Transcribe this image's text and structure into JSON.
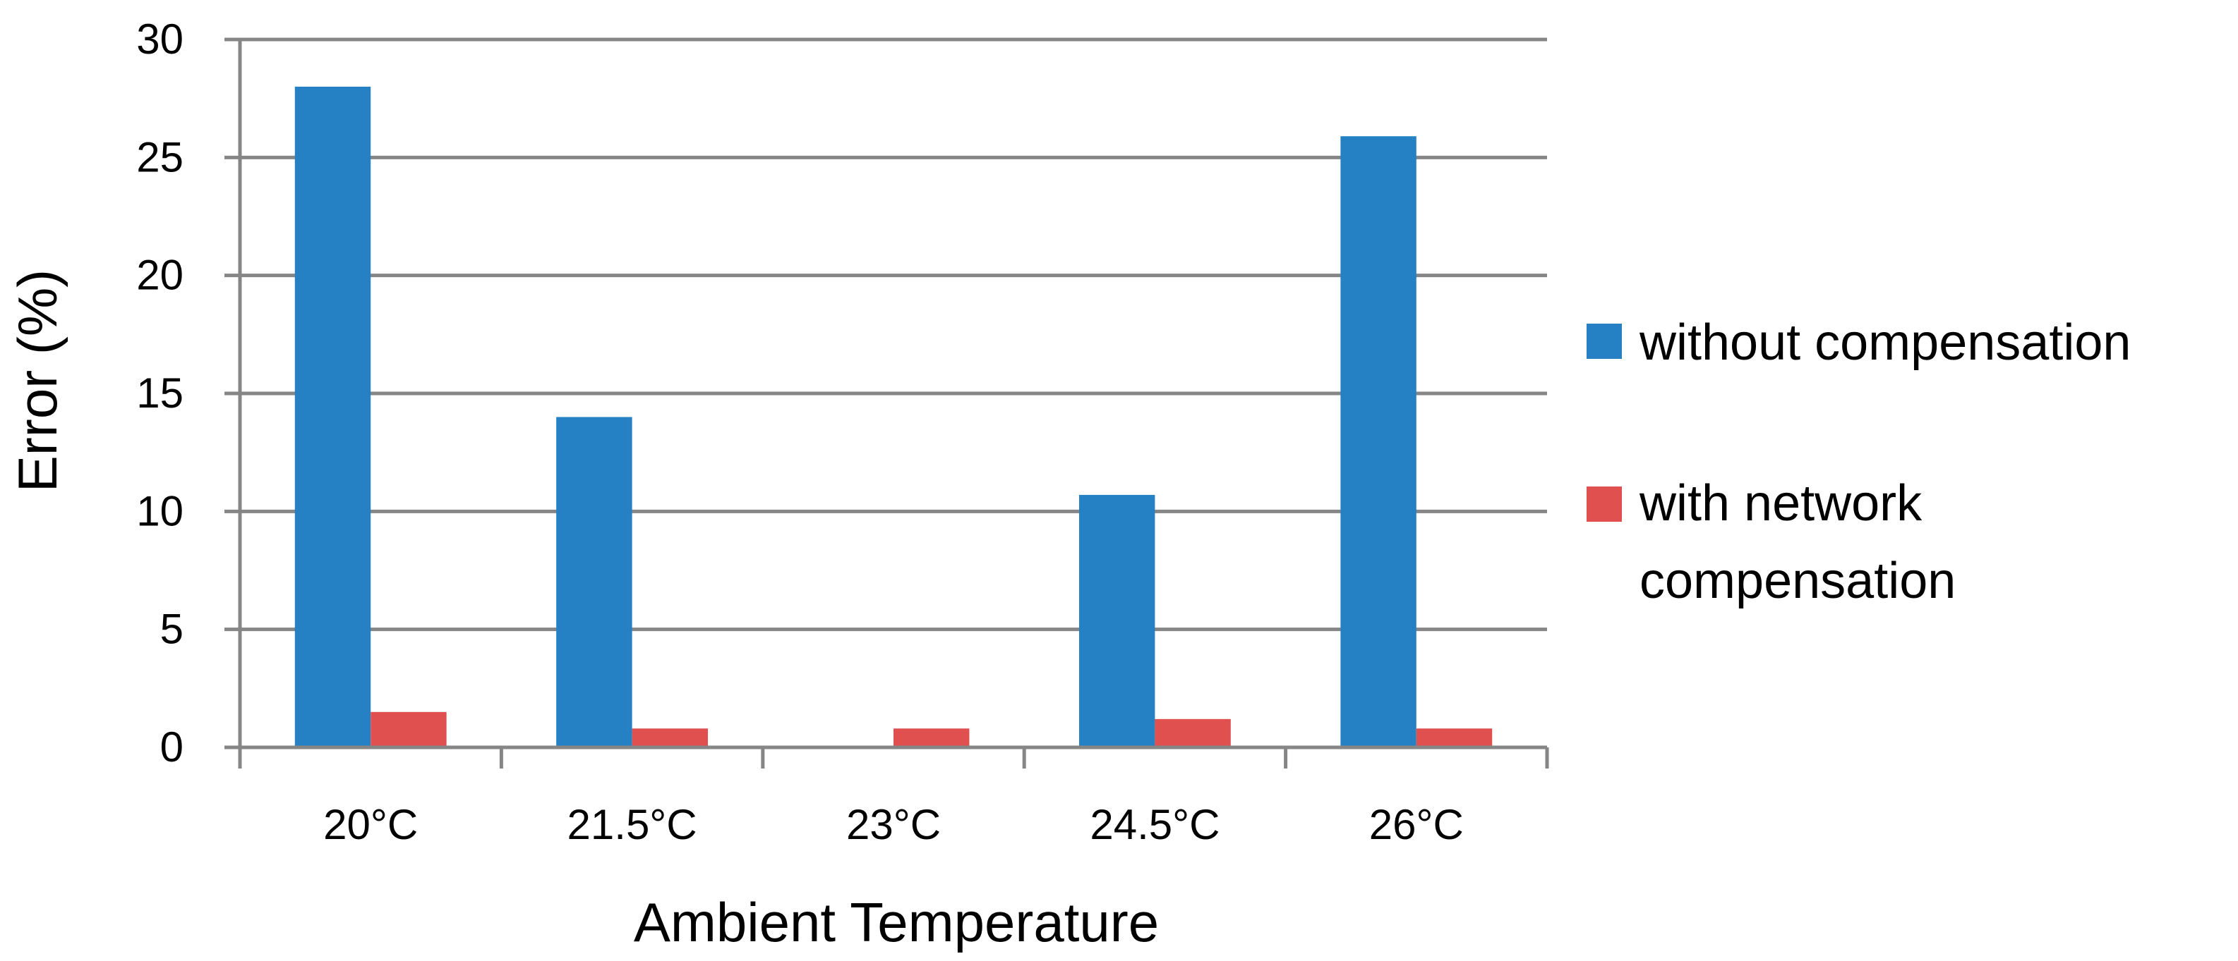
{
  "chart_data": {
    "type": "bar",
    "categories": [
      "20°C",
      "21.5°C",
      "23°C",
      "24.5°C",
      "26°C"
    ],
    "series": [
      {
        "name": "without compensation",
        "values": [
          28,
          14,
          0,
          10.7,
          25.9
        ],
        "color": "#2581C4"
      },
      {
        "name": "with network compensation",
        "values": [
          1.5,
          0.8,
          0.8,
          1.2,
          0.8
        ],
        "color": "#E0504F"
      }
    ],
    "xlabel": "Ambient Temperature",
    "ylabel": "Error (%)",
    "ylim": [
      0,
      30
    ],
    "yticks": [
      "0",
      "5",
      "10",
      "15",
      "20",
      "25",
      "30"
    ],
    "grid": true,
    "legend_position": "right"
  }
}
